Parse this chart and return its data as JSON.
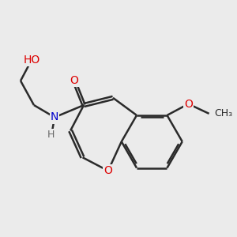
{
  "background_color": "#ebebeb",
  "bond_color": "#2a2a2a",
  "bond_width": 1.8,
  "atom_colors": {
    "O": "#dd0000",
    "N": "#0000cc",
    "H": "#666666",
    "C": "#2a2a2a"
  },
  "font_size": 10,
  "fig_size": [
    3.0,
    3.0
  ],
  "dpi": 100
}
